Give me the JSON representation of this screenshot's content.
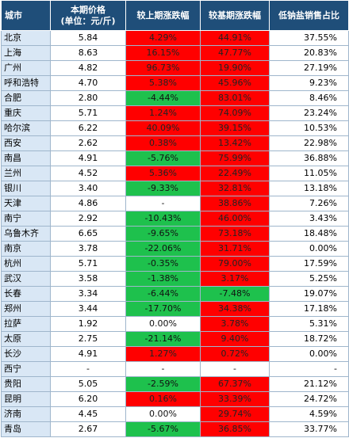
{
  "colors": {
    "header": "#1f4e79",
    "up": "#ff0000",
    "down": "#1ec14d",
    "city_bg": "#d9e7f5"
  },
  "headers": {
    "city": "城市",
    "price_line1": "本期价格",
    "price_line2": "(单位：元/斤)",
    "mom": "较上期涨跌幅",
    "yoy": "较基期涨跌幅",
    "share": "低钠盐销售占比"
  },
  "rows": [
    {
      "city": "北京",
      "price": "5.84",
      "mom": "4.29%",
      "mom_color": "red",
      "yoy": "44.91%",
      "yoy_color": "red",
      "share": "37.55%"
    },
    {
      "city": "上海",
      "price": "8.63",
      "mom": "16.15%",
      "mom_color": "red",
      "yoy": "47.77%",
      "yoy_color": "red",
      "share": "20.83%"
    },
    {
      "city": "广州",
      "price": "4.82",
      "mom": "96.73%",
      "mom_color": "red",
      "yoy": "19.90%",
      "yoy_color": "red",
      "share": "27.19%"
    },
    {
      "city": "呼和浩特",
      "price": "4.70",
      "mom": "5.38%",
      "mom_color": "red",
      "yoy": "45.96%",
      "yoy_color": "red",
      "share": "9.23%"
    },
    {
      "city": "合肥",
      "price": "2.80",
      "mom": "-4.44%",
      "mom_color": "green",
      "yoy": "83.01%",
      "yoy_color": "red",
      "share": "8.46%"
    },
    {
      "city": "重庆",
      "price": "5.71",
      "mom": "1.24%",
      "mom_color": "red",
      "yoy": "74.09%",
      "yoy_color": "red",
      "share": "23.24%"
    },
    {
      "city": "哈尔滨",
      "price": "6.22",
      "mom": "40.09%",
      "mom_color": "red",
      "yoy": "39.15%",
      "yoy_color": "red",
      "share": "10.53%"
    },
    {
      "city": "西安",
      "price": "2.62",
      "mom": "0.38%",
      "mom_color": "red",
      "yoy": "13.42%",
      "yoy_color": "red",
      "share": "22.98%"
    },
    {
      "city": "南昌",
      "price": "4.91",
      "mom": "-5.76%",
      "mom_color": "green",
      "yoy": "75.99%",
      "yoy_color": "red",
      "share": "36.88%"
    },
    {
      "city": "兰州",
      "price": "4.52",
      "mom": "5.36%",
      "mom_color": "red",
      "yoy": "22.49%",
      "yoy_color": "red",
      "share": "11.05%"
    },
    {
      "city": "银川",
      "price": "3.40",
      "mom": "-9.33%",
      "mom_color": "green",
      "yoy": "32.81%",
      "yoy_color": "red",
      "share": "13.18%"
    },
    {
      "city": "天津",
      "price": "4.86",
      "mom": "-",
      "mom_color": "white",
      "yoy": "38.86%",
      "yoy_color": "red",
      "share": "7.26%"
    },
    {
      "city": "南宁",
      "price": "2.92",
      "mom": "-10.43%",
      "mom_color": "green",
      "yoy": "46.00%",
      "yoy_color": "red",
      "share": "3.43%"
    },
    {
      "city": "乌鲁木齐",
      "price": "6.65",
      "mom": "-9.65%",
      "mom_color": "green",
      "yoy": "73.18%",
      "yoy_color": "red",
      "share": "18.48%"
    },
    {
      "city": "南京",
      "price": "3.78",
      "mom": "-22.06%",
      "mom_color": "green",
      "yoy": "31.71%",
      "yoy_color": "red",
      "share": "0.00%"
    },
    {
      "city": "杭州",
      "price": "5.71",
      "mom": "-0.35%",
      "mom_color": "green",
      "yoy": "79.00%",
      "yoy_color": "red",
      "share": "17.59%"
    },
    {
      "city": "武汉",
      "price": "3.58",
      "mom": "-1.38%",
      "mom_color": "green",
      "yoy": "3.17%",
      "yoy_color": "red",
      "share": "5.25%"
    },
    {
      "city": "长春",
      "price": "3.34",
      "mom": "-6.44%",
      "mom_color": "green",
      "yoy": "-7.48%",
      "yoy_color": "green",
      "share": "19.07%"
    },
    {
      "city": "郑州",
      "price": "3.44",
      "mom": "-17.70%",
      "mom_color": "green",
      "yoy": "34.38%",
      "yoy_color": "red",
      "share": "17.18%"
    },
    {
      "city": "拉萨",
      "price": "1.92",
      "mom": "0.00%",
      "mom_color": "white",
      "yoy": "3.78%",
      "yoy_color": "red",
      "share": "5.31%"
    },
    {
      "city": "太原",
      "price": "2.75",
      "mom": "-21.14%",
      "mom_color": "green",
      "yoy": "9.40%",
      "yoy_color": "red",
      "share": "18.72%"
    },
    {
      "city": "长沙",
      "price": "4.91",
      "mom": "1.27%",
      "mom_color": "red",
      "yoy": "0.72%",
      "yoy_color": "red",
      "share": "0.00%"
    },
    {
      "city": "西宁",
      "price": "-",
      "mom": "-",
      "mom_color": "white",
      "yoy": "-",
      "yoy_color": "white",
      "share": "-"
    },
    {
      "city": "贵阳",
      "price": "5.05",
      "mom": "-2.59%",
      "mom_color": "green",
      "yoy": "67.37%",
      "yoy_color": "red",
      "share": "21.12%"
    },
    {
      "city": "昆明",
      "price": "6.20",
      "mom": "0.16%",
      "mom_color": "red",
      "yoy": "33.39%",
      "yoy_color": "red",
      "share": "24.72%"
    },
    {
      "city": "济南",
      "price": "4.45",
      "mom": "0.00%",
      "mom_color": "white",
      "yoy": "29.74%",
      "yoy_color": "red",
      "share": "4.59%"
    },
    {
      "city": "青岛",
      "price": "2.67",
      "mom": "-5.67%",
      "mom_color": "green",
      "yoy": "36.85%",
      "yoy_color": "red",
      "share": "33.77%"
    }
  ]
}
